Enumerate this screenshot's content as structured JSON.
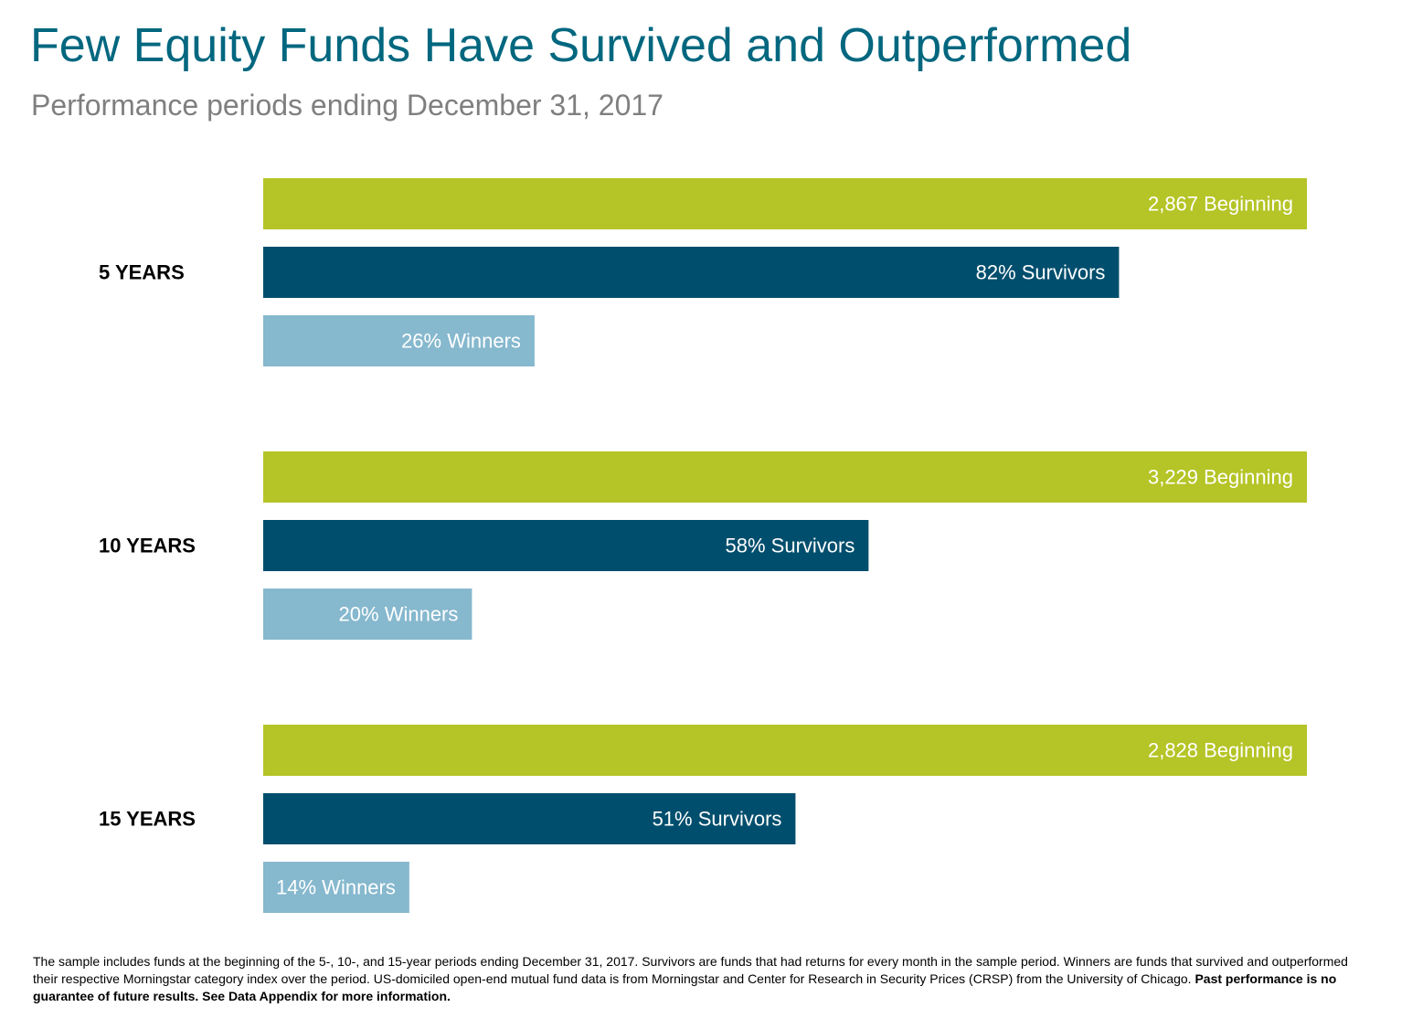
{
  "title": "Few Equity Funds Have Survived and Outperformed",
  "subtitle": "Performance periods ending December 31, 2017",
  "colors": {
    "title": "#00677F",
    "subtitle": "#7F7F7F",
    "beginning": "#B5C426",
    "survivors": "#004E6D",
    "winners": "#86B8CE"
  },
  "chart_data": {
    "type": "bar",
    "orientation": "horizontal",
    "xlim": [
      0,
      100
    ],
    "groups": [
      {
        "label": "5 YEARS",
        "bars": [
          {
            "series": "beginning",
            "value": 100,
            "label": "2,867 Beginning"
          },
          {
            "series": "survivors",
            "value": 82,
            "label": "82% Survivors"
          },
          {
            "series": "winners",
            "value": 26,
            "label": "26% Winners"
          }
        ]
      },
      {
        "label": "10 YEARS",
        "bars": [
          {
            "series": "beginning",
            "value": 100,
            "label": "3,229 Beginning"
          },
          {
            "series": "survivors",
            "value": 58,
            "label": "58% Survivors"
          },
          {
            "series": "winners",
            "value": 20,
            "label": "20% Winners"
          }
        ]
      },
      {
        "label": "15 YEARS",
        "bars": [
          {
            "series": "beginning",
            "value": 100,
            "label": "2,828 Beginning"
          },
          {
            "series": "survivors",
            "value": 51,
            "label": "51% Survivors"
          },
          {
            "series": "winners",
            "value": 14,
            "label": "14% Winners"
          }
        ]
      }
    ]
  },
  "footnote": {
    "text": "The sample includes funds at the beginning of the 5-, 10-, and 15-year periods ending December 31, 2017. Survivors are funds that had returns for every month in the sample period. Winners are funds that survived and outperformed their respective Morningstar category index over the period. US-domiciled open-end mutual fund data is from Morningstar and Center for Research in Security Prices (CRSP) from the University of Chicago. ",
    "bold_text": "Past performance is no guarantee of future results. See Data Appendix for more information."
  }
}
